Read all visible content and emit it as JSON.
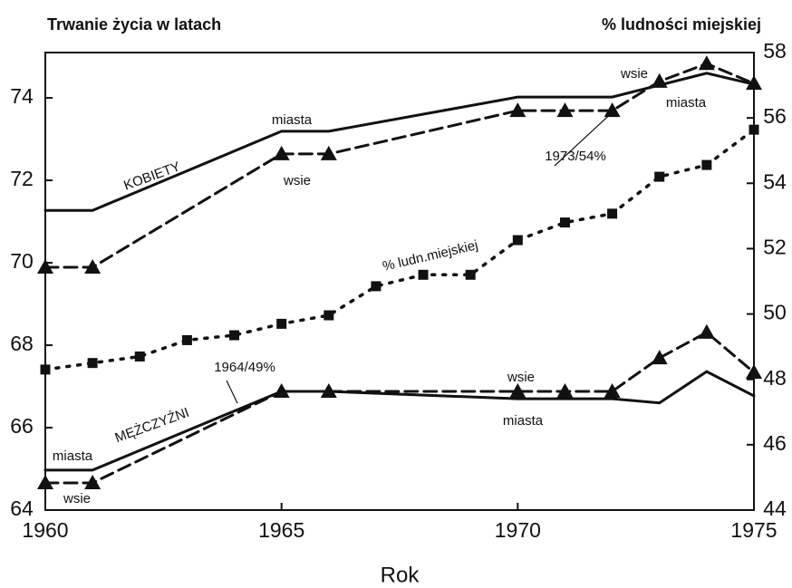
{
  "chart_data": {
    "type": "line",
    "y_label": "Trwanie życia w latach",
    "y2_label": "% ludności miejskiej",
    "x_label": "Rok",
    "xlim": [
      1960,
      1975
    ],
    "xticks": [
      1960,
      1965,
      1970,
      1975
    ],
    "ylim": [
      64,
      75.1
    ],
    "yticks": [
      64,
      66,
      68,
      70,
      72,
      74
    ],
    "y2lim": [
      44,
      58
    ],
    "y2ticks": [
      44,
      46,
      48,
      50,
      52,
      54,
      56,
      58
    ],
    "series": [
      {
        "color": "#111111",
        "dash": false,
        "marker": "none",
        "x": [
          1960,
          1961,
          1965,
          1966,
          1970,
          1972,
          1974,
          1975
        ],
        "values": [
          71.27,
          71.27,
          73.19,
          73.19,
          74.02,
          74.02,
          74.6,
          74.33
        ]
      },
      {
        "color": "#111111",
        "dash": true,
        "marker": "triangle",
        "x": [
          1960,
          1961,
          1965,
          1966,
          1970,
          1971,
          1972,
          1973,
          1974,
          1975
        ],
        "values": [
          69.89,
          69.89,
          72.64,
          72.64,
          73.69,
          73.69,
          73.69,
          74.4,
          74.83,
          74.35
        ]
      },
      {
        "color": "#111111",
        "dash": "dot",
        "marker": "square",
        "axis": "y2",
        "x": [
          1960,
          1961,
          1962,
          1963,
          1964,
          1965,
          1966,
          1967,
          1968,
          1969,
          1970,
          1971,
          1972,
          1973,
          1974,
          1975
        ],
        "values": [
          48.3,
          48.5,
          48.7,
          49.2,
          49.35,
          49.7,
          49.96,
          50.85,
          51.2,
          51.2,
          52.26,
          52.8,
          53.07,
          54.2,
          54.56,
          55.64
        ]
      },
      {
        "color": "#111111",
        "dash": false,
        "marker": "none",
        "x": [
          1960,
          1961,
          1965,
          1966,
          1970,
          1972,
          1973,
          1974,
          1975
        ],
        "values": [
          64.97,
          64.97,
          66.88,
          66.88,
          66.7,
          66.7,
          66.6,
          67.36,
          66.77
        ]
      },
      {
        "color": "#111111",
        "dash": true,
        "marker": "triangle",
        "x": [
          1960,
          1961,
          1965,
          1966,
          1970,
          1971,
          1972,
          1973,
          1974,
          1975
        ],
        "values": [
          64.66,
          64.66,
          66.88,
          66.88,
          66.88,
          66.88,
          66.88,
          67.69,
          68.31,
          67.34
        ]
      }
    ],
    "annotations": [
      "KOBIETY",
      "MĘŻCZYŹNI",
      "% ludn.miejskiej",
      "miasta",
      "wsie",
      "wsie",
      "miasta",
      "1973/54%",
      "1964/49%",
      "wsie",
      "miasta",
      "miasta",
      "wsie"
    ]
  }
}
